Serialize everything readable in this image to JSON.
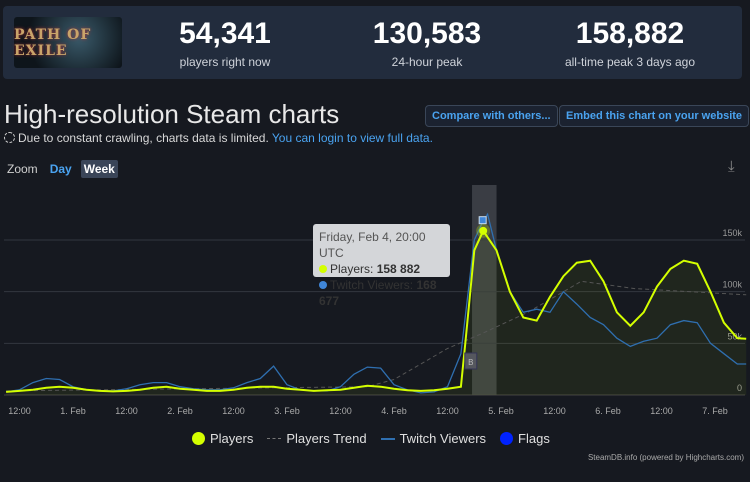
{
  "header": {
    "logo_text": "PATH OF EXILE",
    "stats": [
      {
        "value": "54,341",
        "label": "players right now"
      },
      {
        "value": "130,583",
        "label": "24-hour peak"
      },
      {
        "value": "158,882",
        "label": "all-time peak 3 days ago"
      }
    ]
  },
  "title": "High-resolution Steam charts",
  "buttons": {
    "compare": "Compare with others...",
    "embed": "Embed this chart on your website"
  },
  "notice": {
    "text": "Due to constant crawling, charts data is limited.",
    "link": "You can login to view full data."
  },
  "zoom": {
    "label": "Zoom",
    "day": "Day",
    "week": "Week",
    "selected": "Week"
  },
  "tooltip": {
    "date": "Friday, Feb 4, 20:00 UTC",
    "players_label": "Players:",
    "players_value": "158 882",
    "twitch_label": "Twitch Viewers:",
    "twitch_value": "168 677"
  },
  "legend": [
    "Players",
    "Players Trend",
    "Twitch Viewers",
    "Flags"
  ],
  "credit": "SteamDB.info (powered by Highcharts.com)",
  "colors": {
    "players": "#d4ff00",
    "trend": "#666666",
    "twitch": "#2f6fb0",
    "flags": "#0022ff",
    "link": "#4aa3f0"
  },
  "chart_data": {
    "type": "line",
    "ylim": [
      0,
      180000
    ],
    "yticks": [
      {
        "value": 0,
        "label": "0"
      },
      {
        "value": 50000,
        "label": "50k"
      },
      {
        "value": 100000,
        "label": "100k"
      },
      {
        "value": 150000,
        "label": "150k"
      }
    ],
    "xticks": [
      {
        "t": "2022-01-31T12:00",
        "label": "12:00"
      },
      {
        "t": "2022-02-01T00:00",
        "label": "1. Feb"
      },
      {
        "t": "2022-02-01T12:00",
        "label": "12:00"
      },
      {
        "t": "2022-02-02T00:00",
        "label": "2. Feb"
      },
      {
        "t": "2022-02-02T12:00",
        "label": "12:00"
      },
      {
        "t": "2022-02-03T00:00",
        "label": "3. Feb"
      },
      {
        "t": "2022-02-03T12:00",
        "label": "12:00"
      },
      {
        "t": "2022-02-04T00:00",
        "label": "4. Feb"
      },
      {
        "t": "2022-02-04T12:00",
        "label": "12:00"
      },
      {
        "t": "2022-02-05T00:00",
        "label": "5. Feb"
      },
      {
        "t": "2022-02-05T12:00",
        "label": "12:00"
      },
      {
        "t": "2022-02-06T00:00",
        "label": "6. Feb"
      },
      {
        "t": "2022-02-06T12:00",
        "label": "12:00"
      },
      {
        "t": "2022-02-07T00:00",
        "label": "7. Feb"
      }
    ],
    "highlight": {
      "t": "2022-02-04T20:00",
      "players": 158882,
      "twitch": 168677
    },
    "flags": [
      {
        "t": "2022-02-04T17:00",
        "label": "B"
      }
    ],
    "series": [
      {
        "name": "Players",
        "points": [
          [
            "2022-01-31T09:00",
            3000
          ],
          [
            "2022-01-31T12:00",
            4000
          ],
          [
            "2022-01-31T15:00",
            5000
          ],
          [
            "2022-01-31T18:00",
            7000
          ],
          [
            "2022-01-31T21:00",
            8000
          ],
          [
            "2022-02-01T00:00",
            7000
          ],
          [
            "2022-02-01T03:00",
            5000
          ],
          [
            "2022-02-01T06:00",
            4000
          ],
          [
            "2022-02-01T09:00",
            3500
          ],
          [
            "2022-02-01T12:00",
            4000
          ],
          [
            "2022-02-01T15:00",
            5000
          ],
          [
            "2022-02-01T18:00",
            7000
          ],
          [
            "2022-02-01T21:00",
            8000
          ],
          [
            "2022-02-02T00:00",
            6000
          ],
          [
            "2022-02-02T03:00",
            5000
          ],
          [
            "2022-02-02T06:00",
            4000
          ],
          [
            "2022-02-02T09:00",
            4000
          ],
          [
            "2022-02-02T12:00",
            5000
          ],
          [
            "2022-02-02T15:00",
            7000
          ],
          [
            "2022-02-02T18:00",
            8000
          ],
          [
            "2022-02-02T21:00",
            8000
          ],
          [
            "2022-02-03T00:00",
            6000
          ],
          [
            "2022-02-03T03:00",
            5000
          ],
          [
            "2022-02-03T06:00",
            4000
          ],
          [
            "2022-02-03T09:00",
            4500
          ],
          [
            "2022-02-03T12:00",
            5000
          ],
          [
            "2022-02-03T15:00",
            7000
          ],
          [
            "2022-02-03T18:00",
            9000
          ],
          [
            "2022-02-03T21:00",
            8000
          ],
          [
            "2022-02-04T00:00",
            6000
          ],
          [
            "2022-02-04T03:00",
            4500
          ],
          [
            "2022-02-04T06:00",
            4000
          ],
          [
            "2022-02-04T09:00",
            4500
          ],
          [
            "2022-02-04T12:00",
            6000
          ],
          [
            "2022-02-04T15:00",
            8000
          ],
          [
            "2022-02-04T16:00",
            50000
          ],
          [
            "2022-02-04T18:00",
            140000
          ],
          [
            "2022-02-04T20:00",
            158882
          ],
          [
            "2022-02-04T23:00",
            140000
          ],
          [
            "2022-02-05T02:00",
            100000
          ],
          [
            "2022-02-05T05:00",
            75000
          ],
          [
            "2022-02-05T08:00",
            72000
          ],
          [
            "2022-02-05T11:00",
            95000
          ],
          [
            "2022-02-05T14:00",
            115000
          ],
          [
            "2022-02-05T17:00",
            128000
          ],
          [
            "2022-02-05T20:00",
            130000
          ],
          [
            "2022-02-05T23:00",
            110000
          ],
          [
            "2022-02-06T02:00",
            80000
          ],
          [
            "2022-02-06T05:00",
            67000
          ],
          [
            "2022-02-06T08:00",
            80000
          ],
          [
            "2022-02-06T11:00",
            105000
          ],
          [
            "2022-02-06T14:00",
            122000
          ],
          [
            "2022-02-06T17:00",
            130000
          ],
          [
            "2022-02-06T20:00",
            127000
          ],
          [
            "2022-02-06T23:00",
            100000
          ],
          [
            "2022-02-07T02:00",
            70000
          ],
          [
            "2022-02-07T05:00",
            55000
          ],
          [
            "2022-02-07T07:00",
            54341
          ]
        ]
      },
      {
        "name": "Players Trend",
        "points": [
          [
            "2022-01-31T09:00",
            4000
          ],
          [
            "2022-02-03T18:00",
            8000
          ],
          [
            "2022-02-04T00:00",
            15000
          ],
          [
            "2022-02-04T12:00",
            45000
          ],
          [
            "2022-02-04T20:00",
            60000
          ],
          [
            "2022-02-05T06:00",
            80000
          ],
          [
            "2022-02-05T18:00",
            110000
          ],
          [
            "2022-02-06T06:00",
            103000
          ],
          [
            "2022-02-07T07:00",
            97000
          ]
        ]
      },
      {
        "name": "Twitch Viewers",
        "points": [
          [
            "2022-01-31T09:00",
            3000
          ],
          [
            "2022-01-31T12:00",
            5000
          ],
          [
            "2022-01-31T15:00",
            12000
          ],
          [
            "2022-01-31T18:00",
            16000
          ],
          [
            "2022-01-31T21:00",
            15000
          ],
          [
            "2022-02-01T00:00",
            8000
          ],
          [
            "2022-02-01T03:00",
            5000
          ],
          [
            "2022-02-01T06:00",
            4000
          ],
          [
            "2022-02-01T09:00",
            4000
          ],
          [
            "2022-02-01T12:00",
            6000
          ],
          [
            "2022-02-01T15:00",
            10000
          ],
          [
            "2022-02-01T18:00",
            12000
          ],
          [
            "2022-02-01T21:00",
            12000
          ],
          [
            "2022-02-02T00:00",
            8000
          ],
          [
            "2022-02-02T03:00",
            6000
          ],
          [
            "2022-02-02T06:00",
            5000
          ],
          [
            "2022-02-02T09:00",
            5000
          ],
          [
            "2022-02-02T12:00",
            7000
          ],
          [
            "2022-02-02T15:00",
            12000
          ],
          [
            "2022-02-02T18:00",
            16000
          ],
          [
            "2022-02-02T21:00",
            28000
          ],
          [
            "2022-02-03T00:00",
            10000
          ],
          [
            "2022-02-03T03:00",
            5000
          ],
          [
            "2022-02-03T06:00",
            4000
          ],
          [
            "2022-02-03T09:00",
            4000
          ],
          [
            "2022-02-03T12:00",
            8000
          ],
          [
            "2022-02-03T15:00",
            20000
          ],
          [
            "2022-02-03T18:00",
            27000
          ],
          [
            "2022-02-03T21:00",
            26000
          ],
          [
            "2022-02-04T00:00",
            10000
          ],
          [
            "2022-02-04T03:00",
            5000
          ],
          [
            "2022-02-04T06:00",
            2000
          ],
          [
            "2022-02-04T09:00",
            3000
          ],
          [
            "2022-02-04T12:00",
            8000
          ],
          [
            "2022-02-04T15:00",
            40000
          ],
          [
            "2022-02-04T18:00",
            150000
          ],
          [
            "2022-02-04T20:00",
            168677
          ],
          [
            "2022-02-04T21:00",
            175000
          ],
          [
            "2022-02-04T23:00",
            140000
          ],
          [
            "2022-02-05T02:00",
            100000
          ],
          [
            "2022-02-05T05:00",
            80000
          ],
          [
            "2022-02-05T08:00",
            83000
          ],
          [
            "2022-02-05T11:00",
            80000
          ],
          [
            "2022-02-05T14:00",
            100000
          ],
          [
            "2022-02-05T17:00",
            88000
          ],
          [
            "2022-02-05T20:00",
            75000
          ],
          [
            "2022-02-05T23:00",
            68000
          ],
          [
            "2022-02-06T02:00",
            55000
          ],
          [
            "2022-02-06T05:00",
            47000
          ],
          [
            "2022-02-06T08:00",
            52000
          ],
          [
            "2022-02-06T11:00",
            55000
          ],
          [
            "2022-02-06T14:00",
            68000
          ],
          [
            "2022-02-06T17:00",
            72000
          ],
          [
            "2022-02-06T20:00",
            70000
          ],
          [
            "2022-02-06T23:00",
            50000
          ],
          [
            "2022-02-07T02:00",
            40000
          ],
          [
            "2022-02-07T05:00",
            30000
          ],
          [
            "2022-02-07T07:00",
            30000
          ]
        ]
      }
    ]
  }
}
